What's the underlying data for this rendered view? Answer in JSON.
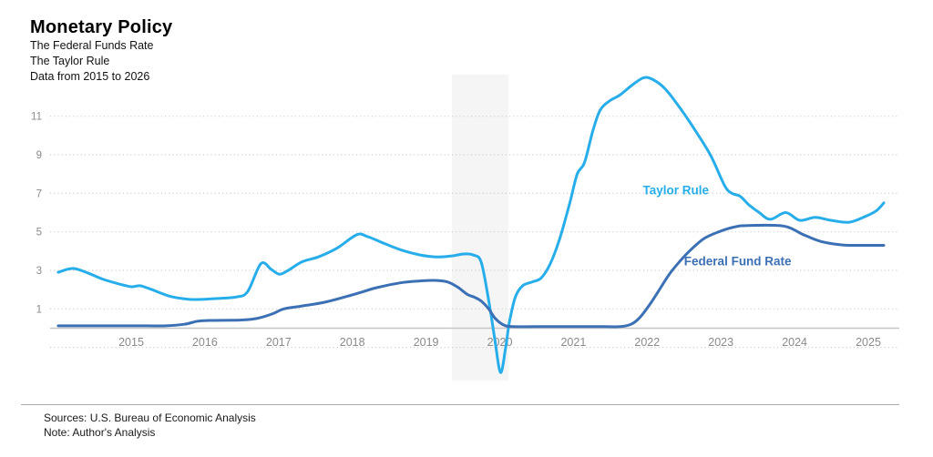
{
  "header": {
    "title": "Monetary Policy",
    "subtitle1": "The Federal Funds Rate",
    "subtitle2": "The Taylor Rule",
    "subtitle3": "Data from 2015 to 2026"
  },
  "footer": {
    "sources": "Sources:  U.S. Bureau of Economic Analysis",
    "note": "Note: Author's Analysis"
  },
  "colors": {
    "taylor_rule": "#27aeea",
    "federal_funds": "#3c70b4",
    "axis_text": "#8a8a8a",
    "gridline": "#d0d0d0",
    "zero_line": "#c6c6c6",
    "recession_band": "#f5f5f5"
  },
  "chart_data": {
    "type": "line",
    "title": "Monetary Policy",
    "xlabel": "",
    "ylabel": "",
    "x_ticks": [
      2015,
      2016,
      2017,
      2018,
      2019,
      2020,
      2021,
      2022,
      2023,
      2024,
      2025
    ],
    "y_ticks": [
      1,
      3,
      5,
      7,
      9,
      11
    ],
    "grid_values": [
      -1,
      1,
      3,
      5,
      7,
      9,
      11
    ],
    "xlim": [
      2013.9,
      2025.42
    ],
    "ylim": [
      -3.05,
      13.35
    ],
    "grid_style": "dotted",
    "legend_position": "inline-labels",
    "recession_band": {
      "from": 2019.35,
      "to": 2020.12
    },
    "series": [
      {
        "name": "Taylor Rule",
        "color": "#27aeea",
        "label": {
          "x": 2021.94,
          "y": 6.95
        },
        "points": [
          [
            2014.01,
            2.9
          ],
          [
            2014.21,
            3.1
          ],
          [
            2014.42,
            2.85
          ],
          [
            2014.61,
            2.55
          ],
          [
            2014.83,
            2.3
          ],
          [
            2015.0,
            2.15
          ],
          [
            2015.12,
            2.2
          ],
          [
            2015.28,
            2.0
          ],
          [
            2015.53,
            1.65
          ],
          [
            2015.78,
            1.5
          ],
          [
            2015.99,
            1.5
          ],
          [
            2016.21,
            1.55
          ],
          [
            2016.43,
            1.62
          ],
          [
            2016.58,
            1.9
          ],
          [
            2016.76,
            3.35
          ],
          [
            2016.9,
            3.05
          ],
          [
            2017.01,
            2.8
          ],
          [
            2017.13,
            3.0
          ],
          [
            2017.32,
            3.45
          ],
          [
            2017.54,
            3.7
          ],
          [
            2017.79,
            4.15
          ],
          [
            2018.06,
            4.85
          ],
          [
            2018.21,
            4.75
          ],
          [
            2018.43,
            4.4
          ],
          [
            2018.67,
            4.05
          ],
          [
            2018.92,
            3.8
          ],
          [
            2019.14,
            3.7
          ],
          [
            2019.35,
            3.75
          ],
          [
            2019.51,
            3.85
          ],
          [
            2019.64,
            3.8
          ],
          [
            2019.75,
            3.4
          ],
          [
            2019.86,
            1.2
          ],
          [
            2019.93,
            -0.5
          ],
          [
            2020.01,
            -2.3
          ],
          [
            2020.08,
            -1.0
          ],
          [
            2020.13,
            0.3
          ],
          [
            2020.21,
            1.6
          ],
          [
            2020.31,
            2.2
          ],
          [
            2020.44,
            2.4
          ],
          [
            2020.56,
            2.6
          ],
          [
            2020.68,
            3.3
          ],
          [
            2020.81,
            4.6
          ],
          [
            2020.95,
            6.5
          ],
          [
            2021.05,
            8.0
          ],
          [
            2021.15,
            8.6
          ],
          [
            2021.26,
            10.2
          ],
          [
            2021.36,
            11.3
          ],
          [
            2021.49,
            11.8
          ],
          [
            2021.63,
            12.1
          ],
          [
            2021.79,
            12.6
          ],
          [
            2021.95,
            13.0
          ],
          [
            2022.08,
            12.9
          ],
          [
            2022.25,
            12.4
          ],
          [
            2022.47,
            11.3
          ],
          [
            2022.68,
            10.1
          ],
          [
            2022.87,
            8.9
          ],
          [
            2023.05,
            7.4
          ],
          [
            2023.15,
            7.0
          ],
          [
            2023.26,
            6.85
          ],
          [
            2023.38,
            6.4
          ],
          [
            2023.52,
            6.0
          ],
          [
            2023.67,
            5.65
          ],
          [
            2023.88,
            6.0
          ],
          [
            2024.07,
            5.6
          ],
          [
            2024.28,
            5.75
          ],
          [
            2024.49,
            5.6
          ],
          [
            2024.74,
            5.5
          ],
          [
            2024.96,
            5.8
          ],
          [
            2025.11,
            6.1
          ],
          [
            2025.21,
            6.5
          ]
        ]
      },
      {
        "name": "Federal Fund Rate",
        "color": "#3c70b4",
        "label": {
          "x": 2022.5,
          "y": 3.25
        },
        "points": [
          [
            2014.01,
            0.12
          ],
          [
            2014.7,
            0.12
          ],
          [
            2015.2,
            0.12
          ],
          [
            2015.47,
            0.12
          ],
          [
            2015.72,
            0.2
          ],
          [
            2015.9,
            0.36
          ],
          [
            2016.06,
            0.4
          ],
          [
            2016.48,
            0.42
          ],
          [
            2016.7,
            0.5
          ],
          [
            2016.92,
            0.75
          ],
          [
            2017.07,
            1.0
          ],
          [
            2017.32,
            1.15
          ],
          [
            2017.63,
            1.35
          ],
          [
            2018.02,
            1.75
          ],
          [
            2018.33,
            2.1
          ],
          [
            2018.65,
            2.35
          ],
          [
            2018.92,
            2.45
          ],
          [
            2019.11,
            2.48
          ],
          [
            2019.29,
            2.4
          ],
          [
            2019.44,
            2.1
          ],
          [
            2019.56,
            1.75
          ],
          [
            2019.66,
            1.6
          ],
          [
            2019.75,
            1.4
          ],
          [
            2019.85,
            1.0
          ],
          [
            2019.94,
            0.5
          ],
          [
            2020.06,
            0.15
          ],
          [
            2020.18,
            0.08
          ],
          [
            2020.5,
            0.08
          ],
          [
            2021.0,
            0.08
          ],
          [
            2021.4,
            0.08
          ],
          [
            2021.63,
            0.08
          ],
          [
            2021.78,
            0.2
          ],
          [
            2021.9,
            0.55
          ],
          [
            2022.03,
            1.2
          ],
          [
            2022.15,
            1.9
          ],
          [
            2022.3,
            2.8
          ],
          [
            2022.45,
            3.5
          ],
          [
            2022.6,
            4.1
          ],
          [
            2022.77,
            4.65
          ],
          [
            2022.97,
            5.0
          ],
          [
            2023.18,
            5.25
          ],
          [
            2023.36,
            5.33
          ],
          [
            2023.85,
            5.3
          ],
          [
            2024.12,
            4.85
          ],
          [
            2024.36,
            4.5
          ],
          [
            2024.61,
            4.33
          ],
          [
            2024.78,
            4.3
          ],
          [
            2025.0,
            4.3
          ],
          [
            2025.21,
            4.3
          ]
        ]
      }
    ]
  }
}
